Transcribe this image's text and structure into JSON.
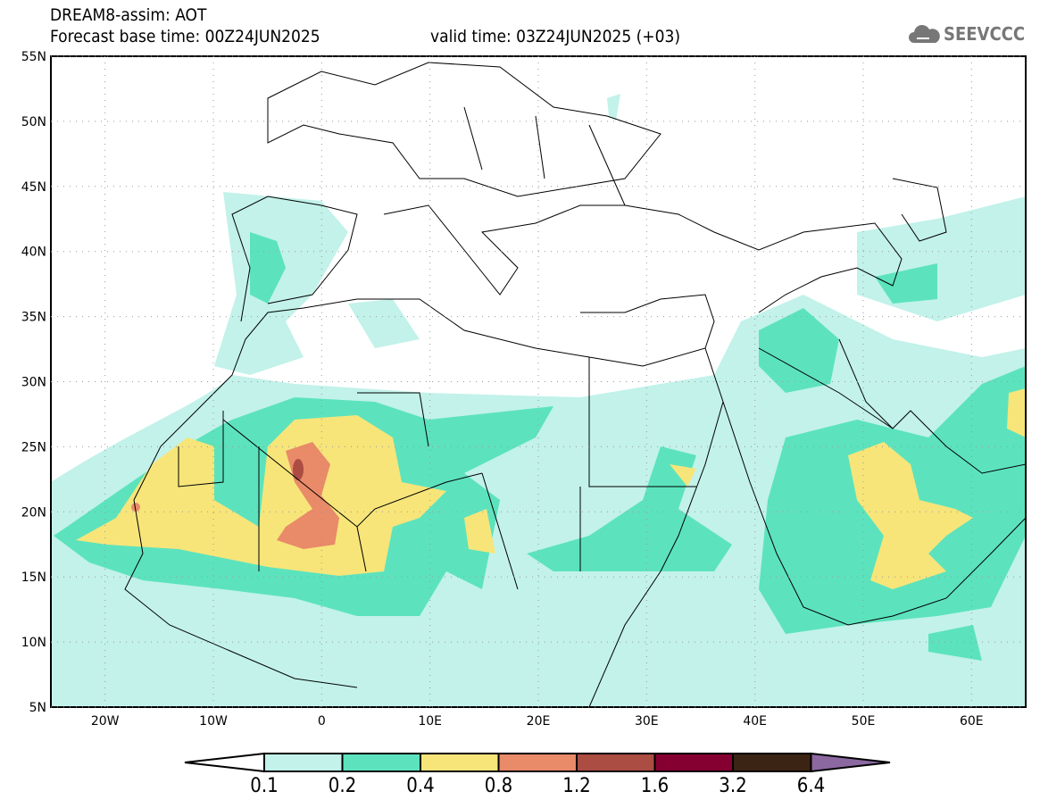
{
  "header": {
    "title": "DREAM8-assim: AOT",
    "base_time": "Forecast base time: 00Z24JUN2025",
    "valid_time": "valid time: 03Z24JUN2025 (+03)"
  },
  "logo": {
    "text": "SEEVCCC",
    "icon": "cloud-icon"
  },
  "map": {
    "lat_labels": [
      "55N",
      "50N",
      "45N",
      "40N",
      "35N",
      "30N",
      "25N",
      "20N",
      "15N",
      "10N",
      "5N"
    ],
    "lon_labels": [
      "20W",
      "10W",
      "0",
      "10E",
      "20E",
      "30E",
      "40E",
      "50E",
      "60E"
    ],
    "lon_range": [
      -25,
      65
    ],
    "lat_range": [
      5,
      55
    ]
  },
  "legend": {
    "levels": [
      "0.1",
      "0.2",
      "0.4",
      "0.8",
      "1.2",
      "1.6",
      "3.2",
      "6.4"
    ],
    "colors": [
      "#ffffff",
      "#c2f2ea",
      "#5ce3bd",
      "#f7e57a",
      "#e98a69",
      "#ab4d42",
      "#850030",
      "#3b2414",
      "#8c68a0"
    ]
  }
}
